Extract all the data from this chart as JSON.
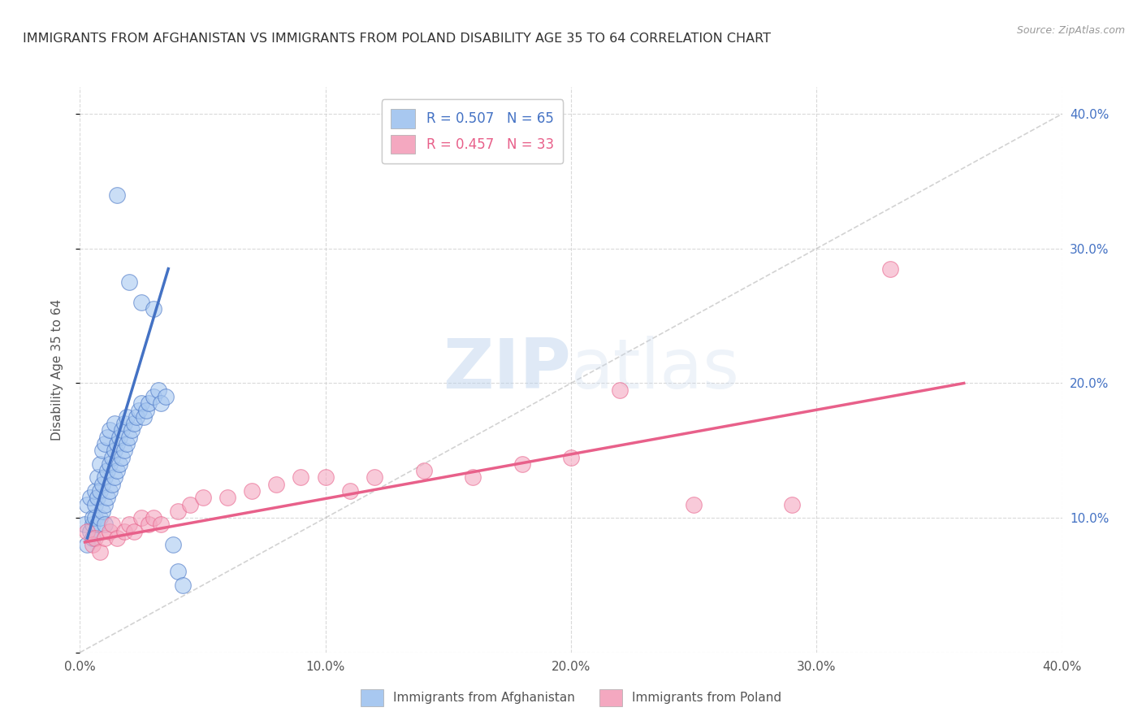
{
  "title": "IMMIGRANTS FROM AFGHANISTAN VS IMMIGRANTS FROM POLAND DISABILITY AGE 35 TO 64 CORRELATION CHART",
  "source": "Source: ZipAtlas.com",
  "ylabel": "Disability Age 35 to 64",
  "xlim": [
    0.0,
    0.4
  ],
  "ylim": [
    0.0,
    0.42
  ],
  "x_ticks": [
    0.0,
    0.1,
    0.2,
    0.3,
    0.4
  ],
  "x_tick_labels": [
    "0.0%",
    "10.0%",
    "20.0%",
    "30.0%",
    "40.0%"
  ],
  "y_ticks": [
    0.0,
    0.1,
    0.2,
    0.3,
    0.4
  ],
  "y_tick_labels_right": [
    "",
    "10.0%",
    "20.0%",
    "30.0%",
    "40.0%"
  ],
  "color_afghanistan": "#a8c8f0",
  "color_poland": "#f4a8c0",
  "color_line_afghanistan": "#4472c4",
  "color_line_poland": "#e8608a",
  "color_diagonal": "#c0c0c0",
  "color_title": "#333333",
  "watermark_zip": "ZIP",
  "watermark_atlas": "atlas",
  "afghanistan_x": [
    0.002,
    0.003,
    0.003,
    0.004,
    0.004,
    0.005,
    0.005,
    0.005,
    0.006,
    0.006,
    0.006,
    0.007,
    0.007,
    0.007,
    0.008,
    0.008,
    0.008,
    0.009,
    0.009,
    0.009,
    0.01,
    0.01,
    0.01,
    0.011,
    0.011,
    0.011,
    0.012,
    0.012,
    0.012,
    0.013,
    0.013,
    0.014,
    0.014,
    0.014,
    0.015,
    0.015,
    0.016,
    0.016,
    0.017,
    0.017,
    0.018,
    0.018,
    0.019,
    0.019,
    0.02,
    0.021,
    0.022,
    0.023,
    0.024,
    0.025,
    0.026,
    0.027,
    0.028,
    0.03,
    0.032,
    0.033,
    0.035,
    0.038,
    0.04,
    0.042,
    0.015,
    0.02,
    0.025,
    0.03,
    0.01
  ],
  "afghanistan_y": [
    0.095,
    0.08,
    0.11,
    0.09,
    0.115,
    0.095,
    0.1,
    0.085,
    0.1,
    0.11,
    0.12,
    0.095,
    0.115,
    0.13,
    0.1,
    0.12,
    0.14,
    0.105,
    0.125,
    0.15,
    0.11,
    0.13,
    0.155,
    0.115,
    0.135,
    0.16,
    0.12,
    0.14,
    0.165,
    0.125,
    0.145,
    0.13,
    0.15,
    0.17,
    0.135,
    0.155,
    0.14,
    0.16,
    0.145,
    0.165,
    0.15,
    0.17,
    0.155,
    0.175,
    0.16,
    0.165,
    0.17,
    0.175,
    0.18,
    0.185,
    0.175,
    0.18,
    0.185,
    0.19,
    0.195,
    0.185,
    0.19,
    0.08,
    0.06,
    0.05,
    0.34,
    0.275,
    0.26,
    0.255,
    0.095
  ],
  "poland_x": [
    0.003,
    0.005,
    0.006,
    0.008,
    0.01,
    0.012,
    0.013,
    0.015,
    0.018,
    0.02,
    0.022,
    0.025,
    0.028,
    0.03,
    0.033,
    0.04,
    0.045,
    0.05,
    0.06,
    0.07,
    0.08,
    0.09,
    0.1,
    0.11,
    0.12,
    0.14,
    0.16,
    0.18,
    0.2,
    0.22,
    0.25,
    0.29,
    0.33
  ],
  "poland_y": [
    0.09,
    0.08,
    0.085,
    0.075,
    0.085,
    0.09,
    0.095,
    0.085,
    0.09,
    0.095,
    0.09,
    0.1,
    0.095,
    0.1,
    0.095,
    0.105,
    0.11,
    0.115,
    0.115,
    0.12,
    0.125,
    0.13,
    0.13,
    0.12,
    0.13,
    0.135,
    0.13,
    0.14,
    0.145,
    0.195,
    0.11,
    0.11,
    0.285
  ],
  "afg_line_x": [
    0.003,
    0.036
  ],
  "afg_line_y": [
    0.085,
    0.285
  ],
  "pol_line_x": [
    0.002,
    0.36
  ],
  "pol_line_y": [
    0.082,
    0.2
  ]
}
